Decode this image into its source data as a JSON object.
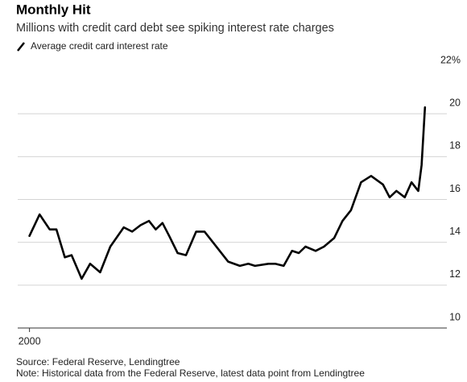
{
  "chart_data": {
    "type": "line",
    "title": "Monthly Hit",
    "subtitle": "Millions with credit card debt see spiking interest rate charges",
    "source": "Source: Federal Reserve, Lendingtree",
    "note": "Note: Historical data from the Federal Reserve, latest data point from Lendingtree",
    "x": [
      2000.0,
      2000.6,
      2001.2,
      2001.6,
      2002.1,
      2002.5,
      2003.1,
      2003.6,
      2004.2,
      2004.8,
      2005.6,
      2006.1,
      2006.6,
      2007.1,
      2007.5,
      2007.9,
      2008.3,
      2008.8,
      2009.3,
      2009.9,
      2010.4,
      2010.9,
      2011.8,
      2012.5,
      2013.0,
      2013.4,
      2014.2,
      2014.6,
      2015.1,
      2015.6,
      2016.0,
      2016.4,
      2017.0,
      2017.5,
      2018.1,
      2018.6,
      2019.1,
      2019.7,
      2020.3,
      2021.0,
      2021.4,
      2021.8,
      2022.3,
      2022.7,
      2023.1,
      2023.3,
      2023.5
    ],
    "series": [
      {
        "name": "Average credit card interest rate",
        "color": "#000000",
        "values": [
          14.3,
          15.3,
          14.6,
          14.6,
          13.3,
          13.4,
          12.3,
          13.0,
          12.6,
          13.8,
          14.7,
          14.5,
          14.8,
          15.0,
          14.6,
          14.9,
          14.3,
          13.5,
          13.4,
          14.5,
          14.5,
          14.0,
          13.1,
          12.9,
          13.0,
          12.9,
          13.0,
          13.0,
          12.9,
          13.6,
          13.5,
          13.8,
          13.6,
          13.8,
          14.2,
          15.0,
          15.5,
          16.8,
          17.1,
          16.7,
          16.1,
          16.4,
          16.1,
          16.8,
          16.4,
          17.6,
          20.3
        ]
      }
    ],
    "xlim": [
      1999.3,
      2024.8
    ],
    "xticks": [
      2000
    ],
    "ylim": [
      10,
      22
    ],
    "yticks": [
      10,
      12,
      14,
      16,
      18,
      20,
      {
        "value": 22,
        "label": "22%"
      }
    ],
    "grid": true
  }
}
